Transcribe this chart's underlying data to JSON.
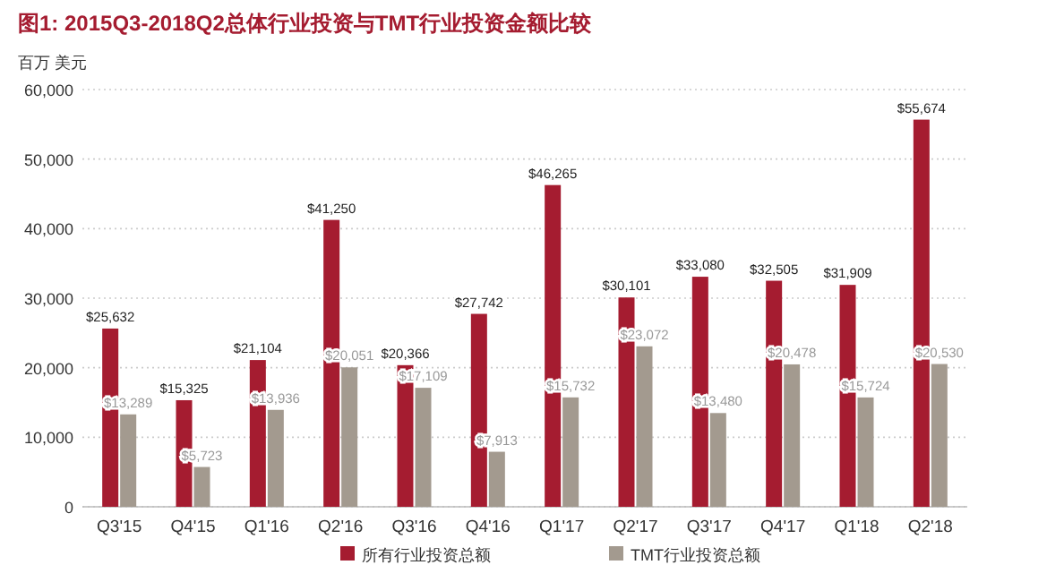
{
  "chart_data": {
    "type": "bar",
    "title": "图1: 2015Q3-2018Q2总体行业投资与TMT行业投资金额比较",
    "ylabel": "百万 美元",
    "categories": [
      "Q3'15",
      "Q4'15",
      "Q1'16",
      "Q2'16",
      "Q3'16",
      "Q4'16",
      "Q1'17",
      "Q2'17",
      "Q3'17",
      "Q4'17",
      "Q1'18",
      "Q2'18"
    ],
    "series": [
      {
        "name": "所有行业投资总额",
        "color": "#a51c30",
        "values": [
          25632,
          15325,
          21104,
          41250,
          20366,
          27742,
          46265,
          30101,
          33080,
          32505,
          31909,
          55674
        ],
        "value_labels": [
          "$25,632",
          "$15,325",
          "$21,104",
          "$41,250",
          "$20,366",
          "$27,742",
          "$46,265",
          "$30,101",
          "$33,080",
          "$32,505",
          "$31,909",
          "$55,674"
        ]
      },
      {
        "name": "TMT行业投资总额",
        "color": "#a39a8f",
        "values": [
          13289,
          5723,
          13936,
          20051,
          17109,
          7913,
          15732,
          23072,
          13480,
          20478,
          15724,
          20530
        ],
        "value_labels": [
          "$13,289",
          "$5,723",
          "$13,936",
          "$20,051",
          "$17,109",
          "$7,913",
          "$15,732",
          "$23,072",
          "$13,480",
          "$20,478",
          "$15,724",
          "$20,530"
        ]
      }
    ],
    "ylim": [
      0,
      60000
    ],
    "yticks": [
      0,
      {
        "value": 10000,
        "label": "10,000"
      },
      {
        "value": 20000,
        "label": "20,000"
      },
      {
        "value": 30000,
        "label": "30,000"
      },
      {
        "value": 40000,
        "label": "40,000"
      },
      {
        "value": 50000,
        "label": "50,000"
      },
      {
        "value": 60000,
        "label": "60,000"
      }
    ],
    "grid": "y",
    "legend": "bottom"
  }
}
